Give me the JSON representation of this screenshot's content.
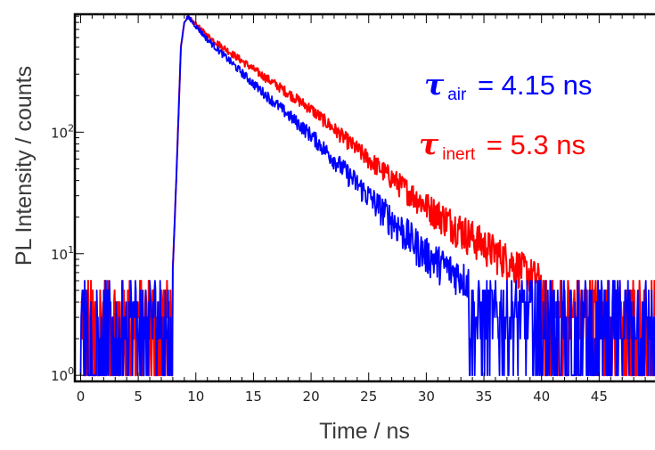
{
  "chart_data": {
    "type": "line",
    "xlabel": "Time / ns",
    "ylabel": "PL Intensity / counts",
    "xlim": [
      -0.5,
      50
    ],
    "ylim_log10": [
      -0.05,
      2.97
    ],
    "log_y": true,
    "grid": false,
    "x_ticks": [
      0,
      5,
      10,
      15,
      20,
      25,
      30,
      35,
      40,
      45
    ],
    "x_tick_labels": [
      "0",
      "5",
      "10",
      "15",
      "20",
      "25",
      "30",
      "35",
      "40",
      "45"
    ],
    "y_tick_labels": [
      {
        "value": 1,
        "base": "10",
        "exp": "0"
      },
      {
        "value": 10,
        "base": "10",
        "exp": "1"
      },
      {
        "value": 100,
        "base": "10",
        "exp": "2"
      }
    ],
    "series": [
      {
        "color": "#ff0000",
        "t": [
          0,
          2,
          4,
          6,
          7.8,
          8.3,
          8.7,
          9.0,
          9.3,
          9.5,
          11,
          15,
          20,
          25,
          30,
          35,
          40,
          45,
          50
        ],
        "y": [
          2.5,
          2.5,
          2.5,
          2.5,
          2.5,
          40,
          500,
          800,
          870,
          850,
          620,
          330,
          155,
          60,
          25,
          12,
          6,
          3.5,
          2.5
        ]
      },
      {
        "color": "#0000ff",
        "t": [
          0,
          2,
          4,
          6,
          7.8,
          8.3,
          8.7,
          9.0,
          9.3,
          9.5,
          11,
          15,
          20,
          25,
          30,
          35,
          40,
          45,
          50
        ],
        "y": [
          2.5,
          2.5,
          2.5,
          2.5,
          2.5,
          40,
          500,
          800,
          870,
          850,
          580,
          250,
          95,
          30,
          10,
          5,
          3,
          2.5,
          2.5
        ]
      }
    ],
    "annotations": [
      {
        "symbol": "τ",
        "sub": "air",
        "text": " = 4.15 ns",
        "color": "#0000ff"
      },
      {
        "symbol": "τ",
        "sub": "inert",
        "text": " = 5.3 ns",
        "color": "#ff0000"
      }
    ]
  }
}
